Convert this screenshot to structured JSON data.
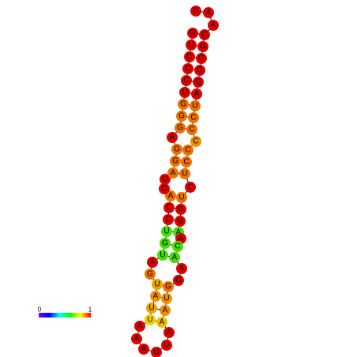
{
  "nodes": [
    {
      "label": "G",
      "color": "#e00000"
    },
    {
      "label": "A",
      "color": "#e00000"
    },
    {
      "label": "A",
      "color": "#e00000"
    },
    {
      "label": "C",
      "color": "#e00000"
    },
    {
      "label": "G",
      "color": "#e00000"
    },
    {
      "label": "G",
      "color": "#e00000"
    },
    {
      "label": "G",
      "color": "#e00000"
    },
    {
      "label": "G",
      "color": "#e00000"
    },
    {
      "label": "A",
      "color": "#e00000"
    },
    {
      "label": "U",
      "color": "#f07000"
    },
    {
      "label": "C",
      "color": "#f07000"
    },
    {
      "label": "C",
      "color": "#f07000"
    },
    {
      "label": "C",
      "color": "#f09000"
    },
    {
      "label": "C",
      "color": "#f07000"
    },
    {
      "label": "C",
      "color": "#f07000"
    },
    {
      "label": "U",
      "color": "#f07000"
    },
    {
      "label": "C",
      "color": "#e00000"
    },
    {
      "label": "U",
      "color": "#f07000"
    },
    {
      "label": "G",
      "color": "#e00000"
    },
    {
      "label": "G",
      "color": "#e00000"
    },
    {
      "label": "A",
      "color": "#44dd00"
    },
    {
      "label": "A",
      "color": "#e00000"
    },
    {
      "label": "C",
      "color": "#44dd00"
    },
    {
      "label": "A",
      "color": "#44dd00"
    },
    {
      "label": "A",
      "color": "#e00000"
    },
    {
      "label": "G",
      "color": "#e00000"
    },
    {
      "label": "G",
      "color": "#f07000"
    },
    {
      "label": "U",
      "color": "#f09000"
    },
    {
      "label": "A",
      "color": "#f09000"
    },
    {
      "label": "A",
      "color": "#f0c000"
    },
    {
      "label": "A",
      "color": "#e00000"
    },
    {
      "label": "U",
      "color": "#e00000"
    },
    {
      "label": "U",
      "color": "#e00000"
    },
    {
      "label": "A",
      "color": "#e00000"
    },
    {
      "label": "A",
      "color": "#e00000"
    },
    {
      "label": "A",
      "color": "#e00000"
    },
    {
      "label": "U",
      "color": "#f0d000"
    },
    {
      "label": "U",
      "color": "#f0a000"
    },
    {
      "label": "A",
      "color": "#f09000"
    },
    {
      "label": "U",
      "color": "#f0a000"
    },
    {
      "label": "G",
      "color": "#f07000"
    },
    {
      "label": "A",
      "color": "#e00000"
    },
    {
      "label": "U",
      "color": "#44dd00"
    },
    {
      "label": "G",
      "color": "#44dd00"
    },
    {
      "label": "U",
      "color": "#44dd00"
    },
    {
      "label": "C",
      "color": "#e00000"
    },
    {
      "label": "C",
      "color": "#e00000"
    },
    {
      "label": "A",
      "color": "#f07000"
    },
    {
      "label": "C",
      "color": "#e00000"
    },
    {
      "label": "U",
      "color": "#e00000"
    },
    {
      "label": "A",
      "color": "#f07000"
    },
    {
      "label": "G",
      "color": "#f07000"
    },
    {
      "label": "G",
      "color": "#f07000"
    },
    {
      "label": "A",
      "color": "#e00000"
    },
    {
      "label": "G",
      "color": "#f07000"
    },
    {
      "label": "G",
      "color": "#f07000"
    },
    {
      "label": "G",
      "color": "#f07000"
    },
    {
      "label": "U",
      "color": "#e00000"
    },
    {
      "label": "C",
      "color": "#e00000"
    },
    {
      "label": "C",
      "color": "#e00000"
    },
    {
      "label": "C",
      "color": "#e00000"
    },
    {
      "label": "U",
      "color": "#e00000"
    },
    {
      "label": "G",
      "color": "#e00000"
    }
  ],
  "scale": {
    "min_label": "0",
    "max_label": "1"
  }
}
